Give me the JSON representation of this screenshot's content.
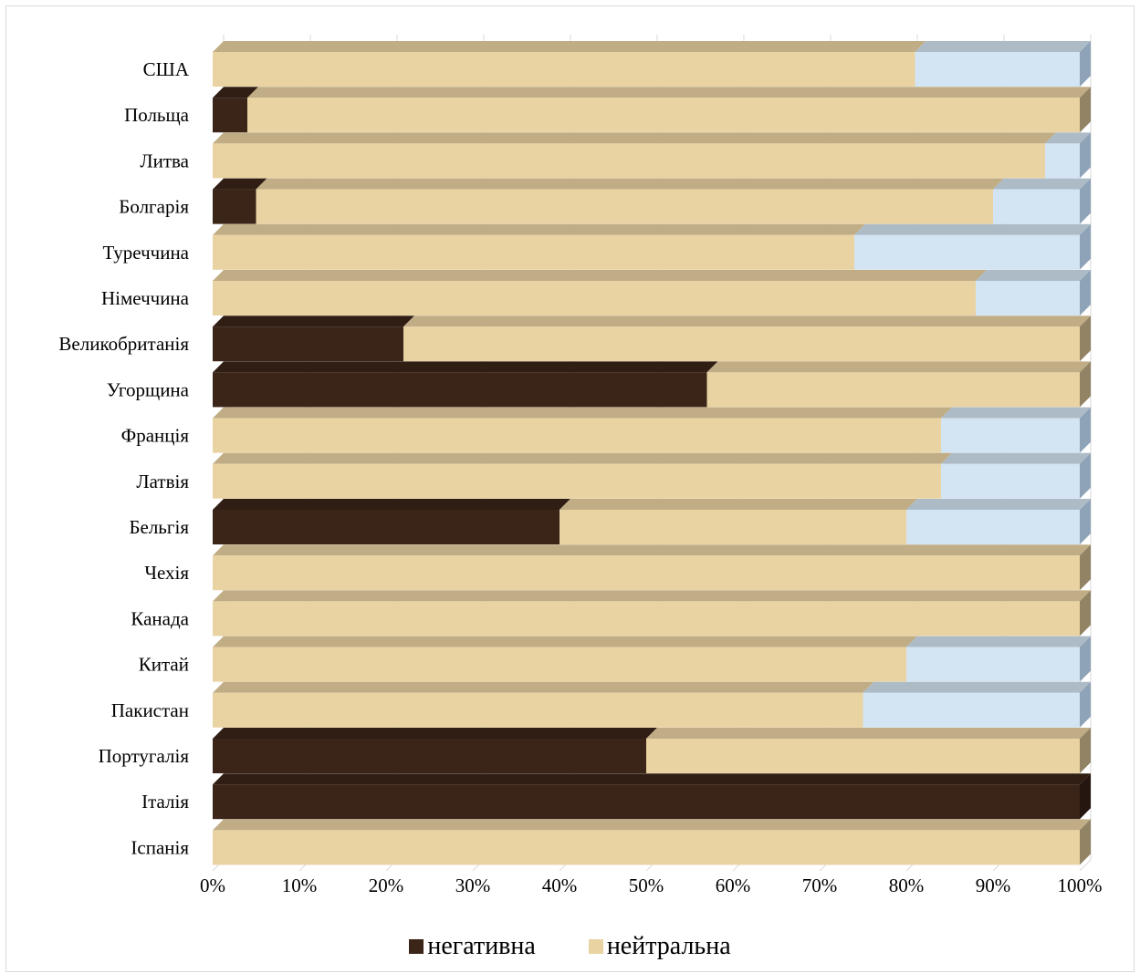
{
  "chart_data": {
    "type": "bar",
    "orientation": "horizontal",
    "stacked": "100%",
    "style": "3d",
    "categories": [
      "США",
      "Польща",
      "Литва",
      "Болгарія",
      "Туреччина",
      "Німеччина",
      "Великобританія",
      "Угорщина",
      "Франція",
      "Латвія",
      "Бельгія",
      "Чехія",
      "Канада",
      "Китай",
      "Пакистан",
      "Португалія",
      "Італія",
      "Іспанія"
    ],
    "series": [
      {
        "name": "негативна",
        "color": "#3b2418",
        "values": [
          0,
          4,
          0,
          5,
          0,
          0,
          22,
          57,
          0,
          0,
          40,
          0,
          0,
          0,
          0,
          50,
          100,
          0
        ]
      },
      {
        "name": "нейтральна",
        "color": "#ead3a2",
        "values": [
          81,
          96,
          96,
          85,
          74,
          88,
          78,
          43,
          84,
          84,
          40,
          100,
          100,
          80,
          75,
          50,
          0,
          100
        ]
      },
      {
        "name": "",
        "color": "#d3e4f3",
        "values": [
          19,
          0,
          4,
          10,
          26,
          12,
          0,
          0,
          16,
          16,
          20,
          0,
          0,
          20,
          25,
          0,
          0,
          0
        ]
      }
    ],
    "x_ticks": [
      "0%",
      "10%",
      "20%",
      "30%",
      "40%",
      "50%",
      "60%",
      "70%",
      "80%",
      "90%",
      "100%"
    ],
    "xlim": [
      0,
      100
    ],
    "grid": true,
    "legend_position": "bottom"
  },
  "legend": [
    {
      "label": "негативна",
      "color": "#3b2418"
    },
    {
      "label": "нейтральна",
      "color": "#ead3a2"
    }
  ]
}
